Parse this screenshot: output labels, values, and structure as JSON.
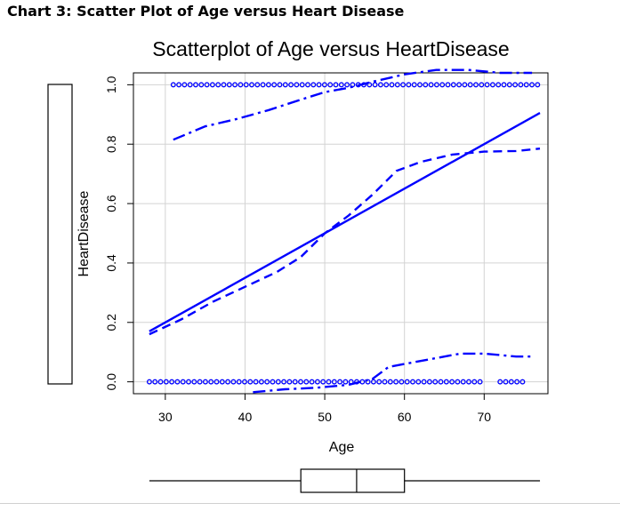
{
  "page": {
    "heading": "Chart 3: Scatter Plot of Age versus Heart Disease"
  },
  "chart_data": {
    "type": "scatter",
    "title": "Scatterplot of Age versus HeartDisease",
    "xlabel": "Age",
    "ylabel": "HeartDisease",
    "xlim": [
      26,
      78
    ],
    "ylim": [
      -0.04,
      1.04
    ],
    "x_ticks": [
      "30",
      "40",
      "50",
      "60",
      "70"
    ],
    "x_tick_values": [
      30,
      40,
      50,
      60,
      70
    ],
    "y_ticks": [
      "0.0",
      "0.2",
      "0.4",
      "0.6",
      "0.8",
      "1.0"
    ],
    "y_tick_values": [
      0,
      0.2,
      0.4,
      0.6,
      0.8,
      1.0
    ],
    "grid": true,
    "color": "#0000ff",
    "points": {
      "y0": {
        "y": 0,
        "x_ranges": [
          [
            28,
            70
          ],
          [
            72,
            75
          ]
        ]
      },
      "y1": {
        "y": 1,
        "x_ranges": [
          [
            31,
            77
          ]
        ]
      }
    },
    "series": [
      {
        "style": "solid",
        "x": [
          28,
          77
        ],
        "y": [
          0.17,
          0.905
        ]
      },
      {
        "style": "dashed",
        "x": [
          28,
          32,
          36,
          40,
          44,
          47,
          50,
          53,
          56,
          59,
          62,
          66,
          70,
          74,
          77
        ],
        "y": [
          0.16,
          0.21,
          0.27,
          0.32,
          0.37,
          0.42,
          0.5,
          0.56,
          0.63,
          0.71,
          0.74,
          0.765,
          0.775,
          0.777,
          0.785
        ]
      },
      {
        "style": "dashdot",
        "x": [
          31,
          35,
          39,
          43,
          47,
          50,
          53,
          56,
          60,
          64,
          68,
          72,
          76
        ],
        "y": [
          0.815,
          0.86,
          0.885,
          0.915,
          0.95,
          0.975,
          0.99,
          1.01,
          1.035,
          1.05,
          1.05,
          1.04,
          1.04
        ]
      },
      {
        "style": "dashdot",
        "x": [
          41,
          45,
          49,
          53,
          56,
          58,
          61,
          64,
          67,
          70,
          74,
          76
        ],
        "y": [
          -0.035,
          -0.025,
          -0.02,
          -0.01,
          0.01,
          0.05,
          0.065,
          0.08,
          0.095,
          0.095,
          0.085,
          0.085
        ]
      }
    ],
    "boxplot_x": {
      "whisker_low": 28,
      "q1": 47,
      "median": 54,
      "q3": 60,
      "whisker_high": 77
    }
  }
}
